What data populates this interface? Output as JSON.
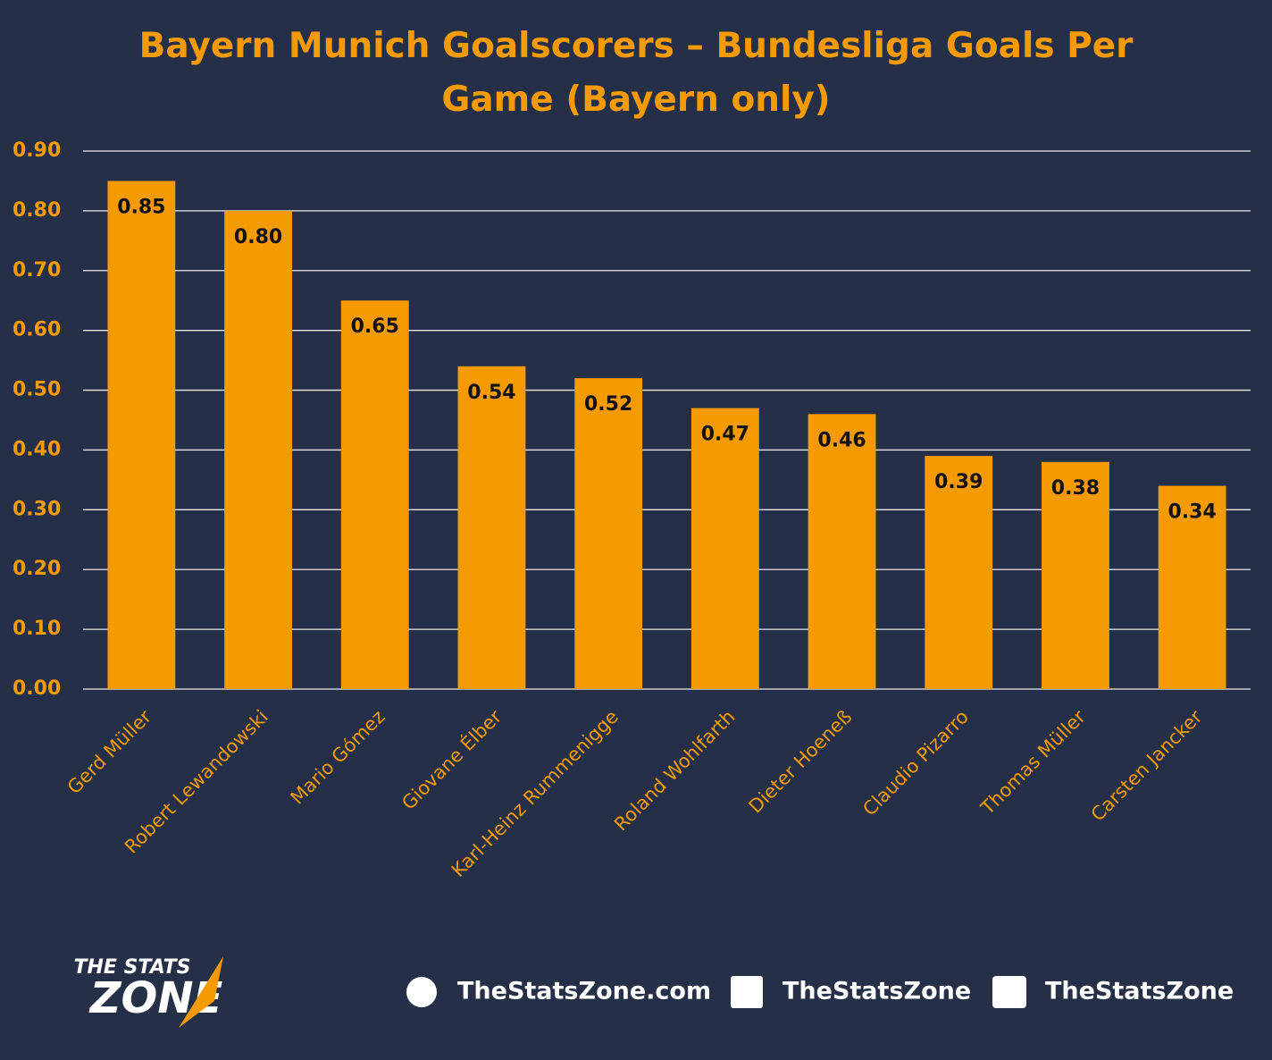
{
  "chart_data": {
    "type": "bar",
    "title": "Bayern Munich Goalscorers – Bundesliga Goals Per Game (Bayern only)",
    "categories": [
      "Gerd Müller",
      "Robert Lewandowski",
      "Mario Gómez",
      "Giovane Élber",
      "Karl-Heinz Rummenigge",
      "Roland Wohlfarth",
      "Dieter Hoeneß",
      "Claudio Pizarro",
      "Thomas Müller",
      "Carsten Jancker"
    ],
    "values": [
      0.85,
      0.8,
      0.65,
      0.54,
      0.52,
      0.47,
      0.46,
      0.39,
      0.38,
      0.34
    ],
    "value_labels": [
      "0.85",
      "0.80",
      "0.65",
      "0.54",
      "0.52",
      "0.47",
      "0.46",
      "0.39",
      "0.38",
      "0.34"
    ],
    "color": "#f59a00",
    "ylim": [
      0,
      0.9
    ],
    "yticks": [
      {
        "value": 0,
        "label": "0.00"
      },
      {
        "value": 0.1,
        "label": "0.10"
      },
      {
        "value": 0.2,
        "label": "0.20"
      },
      {
        "value": 0.3,
        "label": "0.30"
      },
      {
        "value": 0.4,
        "label": "0.40"
      },
      {
        "value": 0.5,
        "label": "0.50"
      },
      {
        "value": 0.6,
        "label": "0.60"
      },
      {
        "value": 0.7,
        "label": "0.70"
      },
      {
        "value": 0.8,
        "label": "0.80"
      },
      {
        "value": 0.9,
        "label": "0.90"
      }
    ],
    "grid": true
  },
  "footer": {
    "logo_top": "THE STATS",
    "logo_bottom": "ZONE",
    "website": "TheStatsZone.com",
    "facebook": "TheStatsZone",
    "twitter": "TheStatsZone"
  }
}
